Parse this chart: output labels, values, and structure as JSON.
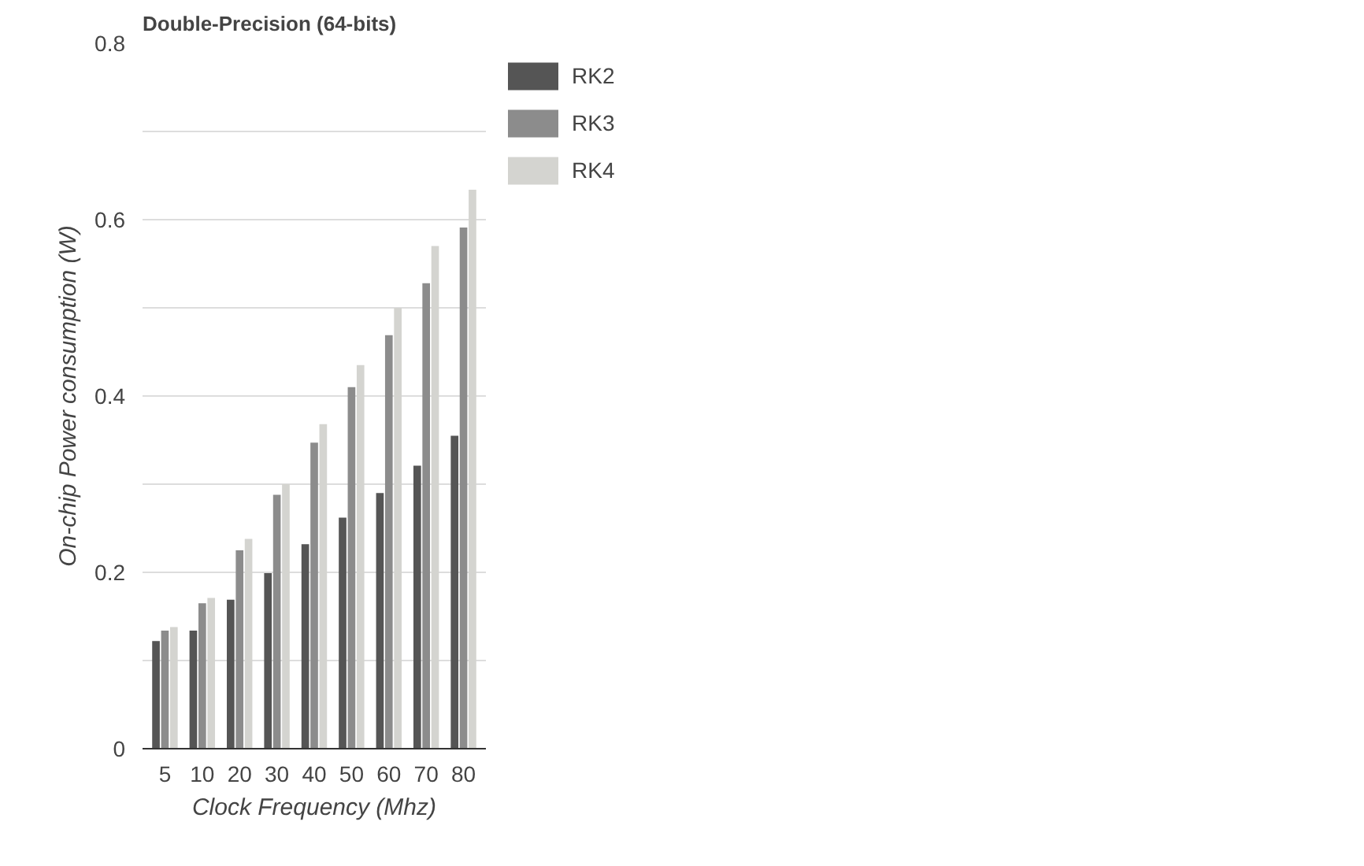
{
  "chart_data": {
    "type": "bar",
    "title": "Double-Precision (64-bits)",
    "xlabel": "Clock Frequency (Mhz)",
    "ylabel": "On-chip Power consumption (W)",
    "categories": [
      "5",
      "10",
      "20",
      "30",
      "40",
      "50",
      "60",
      "70",
      "80"
    ],
    "series": [
      {
        "name": "RK2",
        "color": "#555555",
        "values": [
          0.122,
          0.134,
          0.169,
          0.199,
          0.232,
          0.262,
          0.29,
          0.321,
          0.355
        ]
      },
      {
        "name": "RK3",
        "color": "#8c8c8c",
        "values": [
          0.134,
          0.165,
          0.225,
          0.288,
          0.347,
          0.41,
          0.469,
          0.528,
          0.591
        ]
      },
      {
        "name": "RK4",
        "color": "#d4d4d0",
        "values": [
          0.138,
          0.171,
          0.238,
          0.3,
          0.368,
          0.435,
          0.5,
          0.57,
          0.634
        ]
      }
    ],
    "ylim": [
      0,
      0.8
    ],
    "yticks": [
      0,
      {
        "value": 0.1,
        "label": null
      },
      0.2,
      {
        "value": 0.3,
        "label": null
      },
      0.4,
      {
        "value": 0.5,
        "label": null
      },
      0.6,
      {
        "value": 0.7,
        "label": null
      },
      0.8
    ],
    "grid": "y",
    "legend": "top right"
  }
}
